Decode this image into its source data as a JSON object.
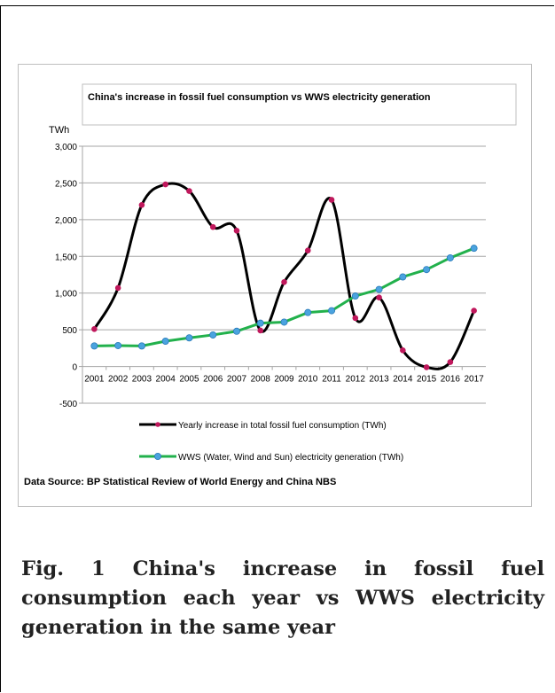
{
  "chart_data": {
    "type": "line",
    "title": "China's increase in fossil fuel consumption vs  WWS electricity generation",
    "ylabel": "TWh",
    "xlabel": "",
    "categories": [
      "2001",
      "2002",
      "2003",
      "2004",
      "2005",
      "2006",
      "2007",
      "2008",
      "2009",
      "2010",
      "2011",
      "2012",
      "2013",
      "2014",
      "2015",
      "2016",
      "2017"
    ],
    "ylim": [
      -500,
      3000
    ],
    "yticks": [
      -500,
      0,
      500,
      1000,
      1500,
      2000,
      2500,
      3000
    ],
    "ytick_labels": [
      "-500",
      "0",
      "500",
      "1,000",
      "1,500",
      "2,000",
      "2,500",
      "3,000"
    ],
    "grid": true,
    "legend_position": "bottom",
    "series": [
      {
        "name": "Yearly increase in total fossil fuel consumption  (TWh)",
        "color": "#000000",
        "marker_color": "#c0185c",
        "smooth": true,
        "values": [
          510,
          1070,
          2200,
          2480,
          2390,
          1900,
          1850,
          490,
          1150,
          1580,
          2270,
          660,
          940,
          220,
          -10,
          60,
          760
        ]
      },
      {
        "name": "WWS (Water, Wind and Sun) electricity generation (TWh)",
        "color": "#22b14c",
        "marker_color": "#4aa3df",
        "smooth": false,
        "values": [
          280,
          285,
          280,
          345,
          390,
          430,
          480,
          590,
          605,
          735,
          760,
          960,
          1050,
          1220,
          1320,
          1480,
          1610
        ]
      }
    ],
    "source": "Data Source: BP Statistical Review of World Energy and China NBS"
  },
  "caption": "Fig. 1 China's increase in fossil fuel consumption each year vs WWS electricity generation in the same year"
}
